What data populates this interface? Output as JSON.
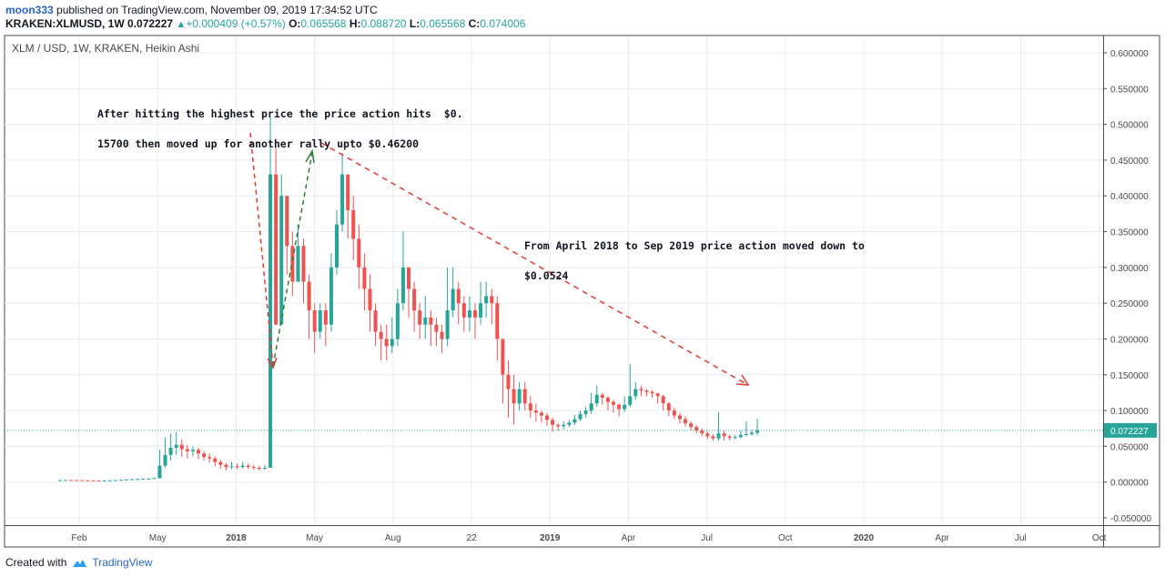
{
  "header": {
    "author": "moon333",
    "published_text": "published on TradingView.com, November 09, 2019 17:34:52 UTC",
    "symbol": "KRAKEN:XLMUSD, 1W",
    "last": "0.072227",
    "change": "+0.000409 (+0.57%)",
    "o_label": "O:",
    "o_value": "0.065568",
    "h_label": "H:",
    "h_value": "0.088720",
    "l_label": "L:",
    "l_value": "0.065568",
    "c_label": "C:",
    "c_value": "0.074006"
  },
  "footer": {
    "created_with": "Created with",
    "brand": "TradingView"
  },
  "annotations": {
    "a1_line1": "After hitting the highest price the price action hits  $0.",
    "a1_line2": "15700 then moved up for another rally upto $0.46200",
    "a2_line1": "From April 2018 to Sep 2019 price action moved down to",
    "a2_line2": "$0.0524"
  },
  "colors": {
    "up": "#26a69a",
    "down": "#ef5350",
    "grid": "#e9ecf2",
    "price_line": "#26a69a"
  },
  "chart_data": {
    "type": "candlestick",
    "title": "XLM / USD, 1W, KRAKEN, Heikin Ashi",
    "x_ticks": [
      "Feb",
      "May",
      "2018",
      "May",
      "Aug",
      "22",
      "2019",
      "Apr",
      "Jul",
      "Oct",
      "2020",
      "Apr",
      "Jul",
      "Oct"
    ],
    "x_ticks_bold": [
      false,
      false,
      true,
      false,
      false,
      false,
      true,
      false,
      false,
      false,
      true,
      false,
      false,
      false
    ],
    "y_ticks": [
      "0.600000",
      "0.550000",
      "0.500000",
      "0.450000",
      "0.400000",
      "0.350000",
      "0.300000",
      "0.250000",
      "0.200000",
      "0.150000",
      "0.100000",
      "0.050000",
      "0.000000",
      "-0.050000"
    ],
    "ylim": [
      -0.05,
      0.6
    ],
    "last_price_label": "0.072227",
    "last_price": 0.072227,
    "candles": [
      [
        0.0028,
        0.0028,
        0.003,
        0.0027
      ],
      [
        0.0028,
        0.0029,
        0.003,
        0.0027
      ],
      [
        0.0029,
        0.0028,
        0.003,
        0.0027
      ],
      [
        0.0028,
        0.0027,
        0.0029,
        0.0025
      ],
      [
        0.0027,
        0.0025,
        0.0028,
        0.0024
      ],
      [
        0.0025,
        0.0024,
        0.0027,
        0.0023
      ],
      [
        0.0024,
        0.0023,
        0.0026,
        0.0022
      ],
      [
        0.0023,
        0.0022,
        0.0025,
        0.0021
      ],
      [
        0.0022,
        0.0023,
        0.0025,
        0.0021
      ],
      [
        0.0023,
        0.0025,
        0.0027,
        0.0022
      ],
      [
        0.0025,
        0.0028,
        0.003,
        0.0024
      ],
      [
        0.0028,
        0.0032,
        0.0034,
        0.0027
      ],
      [
        0.0032,
        0.0036,
        0.0039,
        0.0031
      ],
      [
        0.0036,
        0.004,
        0.0043,
        0.0035
      ],
      [
        0.004,
        0.0043,
        0.0046,
        0.0038
      ],
      [
        0.0043,
        0.0046,
        0.005,
        0.0041
      ],
      [
        0.0046,
        0.0048,
        0.0052,
        0.0044
      ],
      [
        0.0048,
        0.0055,
        0.006,
        0.0045
      ],
      [
        0.0055,
        0.023,
        0.045,
        0.005
      ],
      [
        0.023,
        0.038,
        0.062,
        0.02
      ],
      [
        0.038,
        0.048,
        0.068,
        0.03
      ],
      [
        0.048,
        0.052,
        0.07,
        0.038
      ],
      [
        0.052,
        0.046,
        0.06,
        0.035
      ],
      [
        0.046,
        0.043,
        0.052,
        0.033
      ],
      [
        0.043,
        0.045,
        0.05,
        0.036
      ],
      [
        0.045,
        0.04,
        0.048,
        0.032
      ],
      [
        0.04,
        0.035,
        0.044,
        0.03
      ],
      [
        0.035,
        0.033,
        0.04,
        0.027
      ],
      [
        0.033,
        0.028,
        0.036,
        0.022
      ],
      [
        0.028,
        0.024,
        0.031,
        0.019
      ],
      [
        0.024,
        0.021,
        0.027,
        0.016
      ],
      [
        0.021,
        0.022,
        0.028,
        0.018
      ],
      [
        0.022,
        0.021,
        0.026,
        0.018
      ],
      [
        0.021,
        0.023,
        0.028,
        0.019
      ],
      [
        0.023,
        0.021,
        0.026,
        0.018
      ],
      [
        0.021,
        0.02,
        0.024,
        0.017
      ],
      [
        0.02,
        0.019,
        0.023,
        0.016
      ],
      [
        0.019,
        0.02,
        0.024,
        0.017
      ],
      [
        0.02,
        0.43,
        0.51,
        0.02
      ],
      [
        0.43,
        0.22,
        0.48,
        0.22
      ],
      [
        0.22,
        0.4,
        0.43,
        0.22
      ],
      [
        0.4,
        0.33,
        0.4,
        0.29
      ],
      [
        0.33,
        0.28,
        0.35,
        0.26
      ],
      [
        0.28,
        0.33,
        0.36,
        0.28
      ],
      [
        0.33,
        0.28,
        0.34,
        0.25
      ],
      [
        0.28,
        0.24,
        0.29,
        0.2
      ],
      [
        0.24,
        0.21,
        0.25,
        0.18
      ],
      [
        0.21,
        0.24,
        0.25,
        0.2
      ],
      [
        0.24,
        0.22,
        0.25,
        0.19
      ],
      [
        0.22,
        0.3,
        0.32,
        0.21
      ],
      [
        0.3,
        0.36,
        0.38,
        0.29
      ],
      [
        0.36,
        0.43,
        0.46,
        0.35
      ],
      [
        0.43,
        0.38,
        0.43,
        0.34
      ],
      [
        0.38,
        0.34,
        0.4,
        0.31
      ],
      [
        0.34,
        0.3,
        0.36,
        0.27
      ],
      [
        0.3,
        0.27,
        0.32,
        0.24
      ],
      [
        0.27,
        0.24,
        0.29,
        0.21
      ],
      [
        0.24,
        0.21,
        0.25,
        0.19
      ],
      [
        0.21,
        0.2,
        0.22,
        0.17
      ],
      [
        0.2,
        0.19,
        0.22,
        0.17
      ],
      [
        0.19,
        0.2,
        0.23,
        0.18
      ],
      [
        0.2,
        0.25,
        0.27,
        0.19
      ],
      [
        0.25,
        0.3,
        0.35,
        0.24
      ],
      [
        0.3,
        0.27,
        0.3,
        0.23
      ],
      [
        0.27,
        0.24,
        0.28,
        0.21
      ],
      [
        0.24,
        0.22,
        0.25,
        0.2
      ],
      [
        0.22,
        0.23,
        0.26,
        0.2
      ],
      [
        0.23,
        0.22,
        0.24,
        0.19
      ],
      [
        0.22,
        0.21,
        0.23,
        0.19
      ],
      [
        0.21,
        0.2,
        0.22,
        0.18
      ],
      [
        0.2,
        0.24,
        0.3,
        0.19
      ],
      [
        0.24,
        0.27,
        0.3,
        0.23
      ],
      [
        0.27,
        0.25,
        0.28,
        0.22
      ],
      [
        0.25,
        0.23,
        0.26,
        0.21
      ],
      [
        0.23,
        0.24,
        0.26,
        0.21
      ],
      [
        0.24,
        0.23,
        0.25,
        0.2
      ],
      [
        0.23,
        0.25,
        0.28,
        0.22
      ],
      [
        0.25,
        0.26,
        0.28,
        0.23
      ],
      [
        0.26,
        0.25,
        0.27,
        0.22
      ],
      [
        0.25,
        0.2,
        0.26,
        0.17
      ],
      [
        0.2,
        0.15,
        0.2,
        0.11
      ],
      [
        0.15,
        0.13,
        0.17,
        0.09
      ],
      [
        0.13,
        0.11,
        0.15,
        0.08
      ],
      [
        0.11,
        0.13,
        0.14,
        0.1
      ],
      [
        0.13,
        0.11,
        0.14,
        0.1
      ],
      [
        0.11,
        0.1,
        0.12,
        0.09
      ],
      [
        0.1,
        0.097,
        0.11,
        0.085
      ],
      [
        0.097,
        0.093,
        0.1,
        0.083
      ],
      [
        0.093,
        0.087,
        0.097,
        0.078
      ],
      [
        0.087,
        0.08,
        0.09,
        0.07
      ],
      [
        0.08,
        0.078,
        0.082,
        0.072
      ],
      [
        0.078,
        0.08,
        0.085,
        0.074
      ],
      [
        0.08,
        0.083,
        0.087,
        0.077
      ],
      [
        0.083,
        0.088,
        0.094,
        0.08
      ],
      [
        0.088,
        0.095,
        0.1,
        0.085
      ],
      [
        0.095,
        0.1,
        0.105,
        0.09
      ],
      [
        0.1,
        0.11,
        0.125,
        0.095
      ],
      [
        0.11,
        0.122,
        0.135,
        0.105
      ],
      [
        0.122,
        0.118,
        0.125,
        0.108
      ],
      [
        0.118,
        0.112,
        0.12,
        0.1
      ],
      [
        0.112,
        0.108,
        0.115,
        0.097
      ],
      [
        0.108,
        0.102,
        0.11,
        0.092
      ],
      [
        0.102,
        0.108,
        0.12,
        0.098
      ],
      [
        0.108,
        0.12,
        0.165,
        0.105
      ],
      [
        0.12,
        0.13,
        0.14,
        0.115
      ],
      [
        0.13,
        0.128,
        0.135,
        0.12
      ],
      [
        0.128,
        0.126,
        0.13,
        0.12
      ],
      [
        0.126,
        0.124,
        0.128,
        0.118
      ],
      [
        0.124,
        0.12,
        0.125,
        0.11
      ],
      [
        0.12,
        0.11,
        0.122,
        0.1
      ],
      [
        0.11,
        0.1,
        0.112,
        0.092
      ],
      [
        0.1,
        0.093,
        0.104,
        0.088
      ],
      [
        0.093,
        0.088,
        0.097,
        0.082
      ],
      [
        0.088,
        0.082,
        0.092,
        0.078
      ],
      [
        0.082,
        0.077,
        0.085,
        0.072
      ],
      [
        0.077,
        0.072,
        0.08,
        0.068
      ],
      [
        0.072,
        0.068,
        0.075,
        0.064
      ],
      [
        0.068,
        0.064,
        0.071,
        0.06
      ],
      [
        0.064,
        0.061,
        0.067,
        0.058
      ],
      [
        0.061,
        0.068,
        0.098,
        0.058
      ],
      [
        0.068,
        0.064,
        0.072,
        0.058
      ],
      [
        0.064,
        0.062,
        0.066,
        0.058
      ],
      [
        0.062,
        0.063,
        0.066,
        0.06
      ],
      [
        0.063,
        0.066,
        0.072,
        0.061
      ],
      [
        0.066,
        0.067,
        0.085,
        0.064
      ],
      [
        0.067,
        0.069,
        0.072,
        0.065
      ],
      [
        0.069,
        0.072227,
        0.08872,
        0.065568
      ]
    ]
  }
}
